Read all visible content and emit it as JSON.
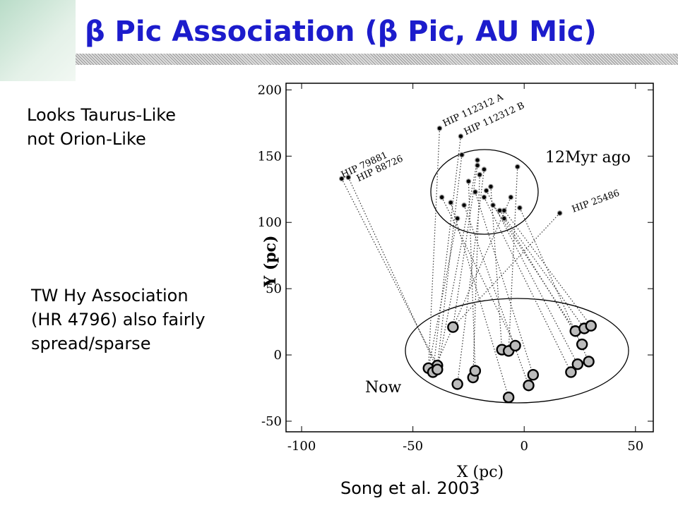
{
  "slide": {
    "title": "β Pic Association (β Pic, AU Mic)",
    "notes": [
      "Looks Taurus-Like",
      "not Orion-Like",
      "TW Hy Association",
      "(HR 4796) also fairly",
      "spread/sparse"
    ],
    "caption": "Song et al. 2003"
  },
  "chart_data": {
    "type": "scatter",
    "x_label": "X (pc)",
    "y_label": "Y (pc)",
    "xlim": [
      -107,
      58
    ],
    "ylim": [
      -58,
      205
    ],
    "xticks": [
      -100,
      -50,
      0,
      50
    ],
    "yticks": [
      -50,
      0,
      50,
      100,
      150,
      200
    ],
    "annotations": [
      "HIP 112312 A",
      "HIP 112312 B",
      "HIP 79881",
      "HIP 88726",
      "HIP 25486"
    ],
    "series": [
      {
        "name": "12Myr ago",
        "color": "#000000",
        "x": [
          -38,
          -28.5,
          -28,
          -21,
          -21,
          -18,
          -20,
          -25,
          -15,
          -3,
          -37,
          -33,
          -27,
          -22,
          -18,
          -17,
          -14,
          -11,
          -9,
          -9,
          -2,
          -30,
          -6,
          -82,
          -79,
          16
        ],
        "values": [
          171,
          165,
          151,
          147,
          143,
          140,
          136,
          131,
          127,
          142,
          119,
          115,
          113,
          123,
          119,
          124,
          113,
          109,
          109,
          103,
          111,
          103,
          119,
          133,
          134,
          107
        ]
      },
      {
        "name": "Now",
        "color": "#bbbbbb",
        "x": [
          -43,
          -41,
          -39,
          -39,
          -32,
          -30,
          -23,
          -22,
          -10,
          -7,
          -4,
          -7,
          2,
          4,
          21,
          24,
          23,
          27,
          30,
          26,
          29
        ],
        "values": [
          -10,
          -13,
          -8,
          -11,
          21,
          -22,
          -17,
          -12,
          4,
          3,
          7,
          -32,
          -23,
          -15,
          -13,
          -7,
          18,
          20,
          22,
          8,
          -5
        ]
      }
    ]
  }
}
